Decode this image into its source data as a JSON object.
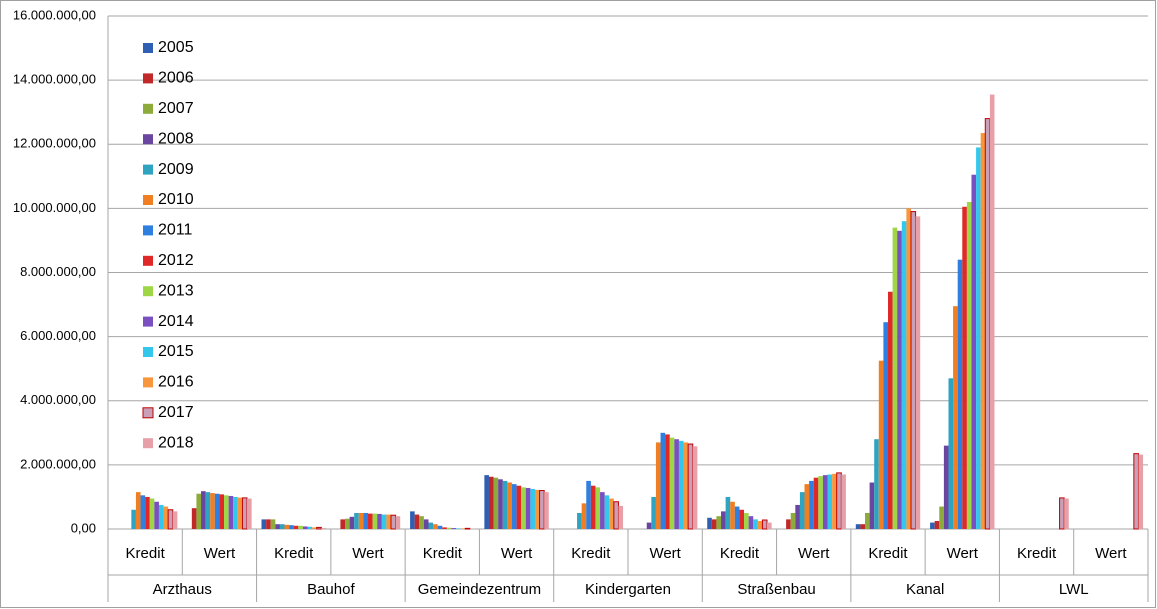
{
  "chart_data": {
    "type": "bar",
    "categories": [
      "Kredit",
      "Wert",
      "Kredit",
      "Wert",
      "Kredit",
      "Wert",
      "Kredit",
      "Wert",
      "Kredit",
      "Wert",
      "Kredit",
      "Wert",
      "Kredit",
      "Wert"
    ],
    "groups": [
      "Arzthaus",
      "Bauhof",
      "Gemeindezentrum",
      "Kindergarten",
      "Straßenbau",
      "Kanal",
      "LWL"
    ],
    "ylim": [
      0,
      16000000
    ],
    "yticks": [
      {
        "value": 0,
        "label": "0,00"
      },
      {
        "value": 2000000,
        "label": "2.000.000,00"
      },
      {
        "value": 4000000,
        "label": "4.000.000,00"
      },
      {
        "value": 6000000,
        "label": "6.000.000,00"
      },
      {
        "value": 8000000,
        "label": "8.000.000,00"
      },
      {
        "value": 10000000,
        "label": "10.000.000,00"
      },
      {
        "value": 12000000,
        "label": "12.000.000,00"
      },
      {
        "value": 14000000,
        "label": "14.000.000,00"
      },
      {
        "value": 16000000,
        "label": "16.000.000,00"
      }
    ],
    "grid": true,
    "legend": "upper-left",
    "series": [
      {
        "name": "2005",
        "color": "#2f5fb3",
        "values": [
          0,
          0,
          300000,
          0,
          550000,
          1680000,
          0,
          0,
          350000,
          0,
          150000,
          200000,
          0,
          0
        ]
      },
      {
        "name": "2006",
        "color": "#c0282a",
        "values": [
          0,
          650000,
          300000,
          300000,
          450000,
          1630000,
          0,
          0,
          300000,
          300000,
          150000,
          250000,
          0,
          0
        ]
      },
      {
        "name": "2007",
        "color": "#8cab3a",
        "values": [
          0,
          1100000,
          300000,
          320000,
          400000,
          1600000,
          0,
          0,
          400000,
          500000,
          500000,
          700000,
          0,
          0
        ]
      },
      {
        "name": "2008",
        "color": "#6a46a0",
        "values": [
          0,
          1180000,
          150000,
          380000,
          300000,
          1550000,
          0,
          200000,
          550000,
          750000,
          1450000,
          2600000,
          0,
          0
        ]
      },
      {
        "name": "2009",
        "color": "#2ea4c0",
        "values": [
          600000,
          1150000,
          150000,
          500000,
          200000,
          1500000,
          500000,
          1000000,
          1000000,
          1150000,
          2800000,
          4700000,
          0,
          0
        ]
      },
      {
        "name": "2010",
        "color": "#f07e22",
        "values": [
          1150000,
          1120000,
          130000,
          500000,
          150000,
          1450000,
          800000,
          2700000,
          850000,
          1400000,
          5250000,
          6950000,
          0,
          0
        ]
      },
      {
        "name": "2011",
        "color": "#2f7fe0",
        "values": [
          1050000,
          1100000,
          120000,
          500000,
          100000,
          1400000,
          1500000,
          3000000,
          700000,
          1500000,
          6450000,
          8400000,
          0,
          0
        ]
      },
      {
        "name": "2012",
        "color": "#e02828",
        "values": [
          1000000,
          1080000,
          100000,
          480000,
          50000,
          1350000,
          1350000,
          2950000,
          600000,
          1600000,
          7400000,
          10050000,
          0,
          0
        ]
      },
      {
        "name": "2013",
        "color": "#9fd646",
        "values": [
          950000,
          1050000,
          100000,
          480000,
          40000,
          1300000,
          1300000,
          2850000,
          500000,
          1650000,
          9400000,
          10200000,
          0,
          0
        ]
      },
      {
        "name": "2014",
        "color": "#7a4fc0",
        "values": [
          850000,
          1030000,
          80000,
          470000,
          30000,
          1280000,
          1150000,
          2800000,
          400000,
          1680000,
          9300000,
          11050000,
          0,
          0
        ]
      },
      {
        "name": "2015",
        "color": "#33c7ec",
        "values": [
          750000,
          1000000,
          70000,
          450000,
          20000,
          1250000,
          1050000,
          2750000,
          300000,
          1700000,
          9600000,
          11900000,
          0,
          0
        ]
      },
      {
        "name": "2016",
        "color": "#f7963c",
        "values": [
          700000,
          980000,
          50000,
          450000,
          20000,
          1220000,
          950000,
          2700000,
          250000,
          1720000,
          10000000,
          12350000,
          0,
          0
        ]
      },
      {
        "name": "2017",
        "color": "#c9a0b8",
        "edge_color": "#c00000",
        "values": [
          600000,
          970000,
          50000,
          430000,
          20000,
          1200000,
          850000,
          2650000,
          280000,
          1750000,
          9900000,
          12800000,
          970000,
          2350000
        ]
      },
      {
        "name": "2018",
        "color": "#e8a0a8",
        "values": [
          550000,
          950000,
          30000,
          400000,
          10000,
          1150000,
          720000,
          2580000,
          200000,
          1700000,
          9750000,
          13550000,
          950000,
          2320000
        ]
      }
    ]
  }
}
